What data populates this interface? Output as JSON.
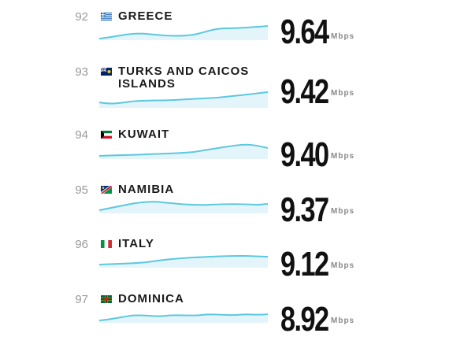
{
  "colors": {
    "accent": "#5cc8e0",
    "rank": "#9a9a9a",
    "text": "#1a1a1a"
  },
  "rows": [
    {
      "rank": "92",
      "country": "GREECE",
      "flag": "greece-flag-icon",
      "speed": "9.64",
      "unit": "Mbps"
    },
    {
      "rank": "93",
      "country": "TURKS AND CAICOS ISLANDS",
      "flag": "turks-and-caicos-flag-icon",
      "speed": "9.42",
      "unit": "Mbps"
    },
    {
      "rank": "94",
      "country": "KUWAIT",
      "flag": "kuwait-flag-icon",
      "speed": "9.40",
      "unit": "Mbps"
    },
    {
      "rank": "95",
      "country": "NAMIBIA",
      "flag": "namibia-flag-icon",
      "speed": "9.37",
      "unit": "Mbps"
    },
    {
      "rank": "96",
      "country": "ITALY",
      "flag": "italy-flag-icon",
      "speed": "9.12",
      "unit": "Mbps"
    },
    {
      "rank": "97",
      "country": "DOMINICA",
      "flag": "dominica-flag-icon",
      "speed": "8.92",
      "unit": "Mbps"
    }
  ]
}
